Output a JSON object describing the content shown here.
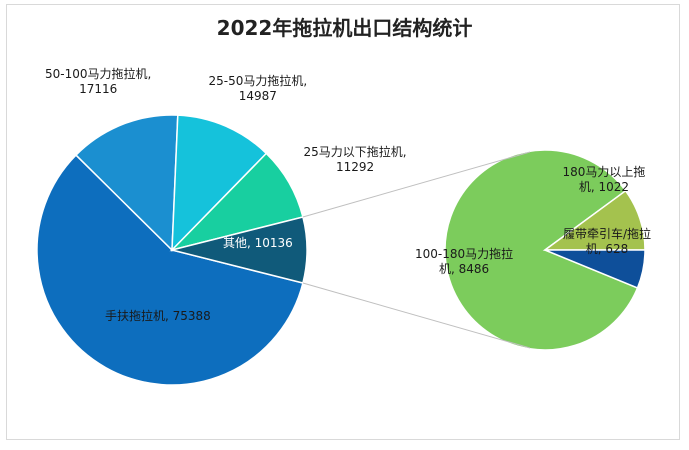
{
  "chart_data": {
    "type": "pie",
    "variant": "pie-of-pie",
    "title": "2022年拖拉机出口结构统计",
    "main_pie": {
      "slices": [
        {
          "name": "手扶拖拉机",
          "value": 75388,
          "color": "#0d6ebe",
          "label_line1": "手扶拖拉机, 75388",
          "label_line2": ""
        },
        {
          "name": "50-100马力拖拉机",
          "value": 17116,
          "color": "#1b8fd0",
          "label_line1": "50-100马力拖拉机,",
          "label_line2": "17116"
        },
        {
          "name": "25-50马力拖拉机",
          "value": 14987,
          "color": "#15c2db",
          "label_line1": "25-50马力拖拉机,",
          "label_line2": "14987"
        },
        {
          "name": "25马力以下拖拉机",
          "value": 11292,
          "color": "#18cfa0",
          "label_line1": "25马力以下拖拉机,",
          "label_line2": "11292"
        },
        {
          "name": "其他",
          "value": 10136,
          "color": "#105a7a",
          "label_line1": "其他, 10136",
          "label_line2": ""
        }
      ]
    },
    "secondary_pie": {
      "slices": [
        {
          "name": "100-180马力拖拉",
          "value": 8486,
          "color": "#7ccc5c",
          "label_line1": "100-180马力拖拉",
          "label_line2": "机, 8486"
        },
        {
          "name": "180马力以上拖拉机",
          "value": 1022,
          "color": "#a4c24e",
          "label_line1": "180马力以上拖",
          "label_line2": "机, 1022"
        },
        {
          "name": "履带牵引车/拖拉机",
          "value": 628,
          "color": "#0e4f9a",
          "label_line1": "履带牵引车/拖拉",
          "label_line2": "机, 628"
        }
      ]
    }
  }
}
